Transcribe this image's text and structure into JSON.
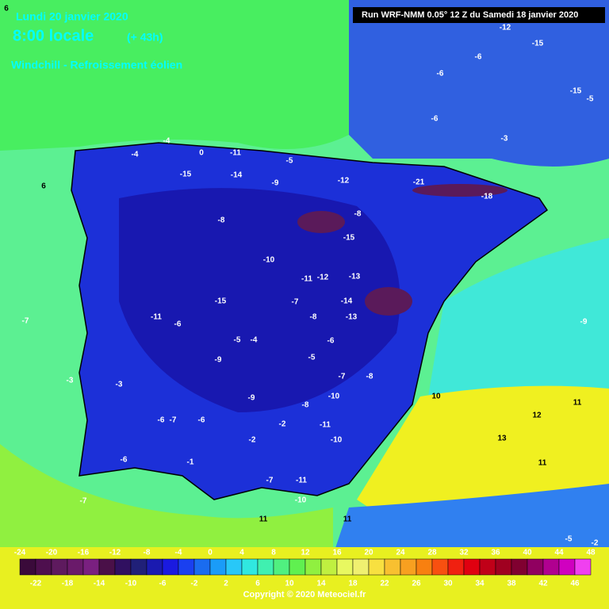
{
  "header": {
    "date": "Lundi 20 janvier 2020",
    "time": "8:00 locale",
    "lead": "(+ 43h)",
    "product": "Windchill - Refroissement éolien",
    "run": "Run WRF-NMM 0.05° 12 Z du Samedi 18 janvier 2020"
  },
  "map_labels": [
    6,
    -12,
    -15,
    -6,
    -6,
    -15,
    -5,
    -6,
    -3,
    -4,
    -4,
    0,
    -11,
    -5,
    -15,
    -14,
    -9,
    -12,
    -21,
    -18,
    -8,
    -8,
    -15,
    -10,
    -12,
    -13,
    -11,
    -15,
    -7,
    -14,
    -8,
    -13,
    -6,
    -11,
    -9,
    -5,
    -4,
    -6,
    -9,
    -5,
    -7,
    -8,
    -3,
    -9,
    -10,
    -8,
    -6,
    -7,
    -6,
    -2,
    -11,
    -2,
    -10,
    -6,
    -1,
    -7,
    -11,
    -10,
    10,
    11,
    12,
    13,
    11,
    -7,
    11,
    11,
    -5,
    -2,
    6,
    -7,
    -3
  ],
  "colorbar": {
    "top_labels": [
      -24,
      -20,
      -16,
      -12,
      -8,
      -4,
      0,
      4,
      8,
      12,
      16,
      20,
      24,
      28,
      32,
      36,
      40,
      44,
      48
    ],
    "bottom_labels": [
      -22,
      -18,
      -14,
      -10,
      -6,
      -2,
      2,
      6,
      10,
      14,
      18,
      22,
      26,
      30,
      34,
      38,
      42,
      46
    ],
    "colors": [
      "#3a0a3a",
      "#4e0f4e",
      "#5e1a5e",
      "#6a1a6a",
      "#7a2080",
      "#4a1048",
      "#301060",
      "#202078",
      "#1a1ab0",
      "#1a1ae0",
      "#1a40f0",
      "#1a6cf0",
      "#1a9cf8",
      "#28c8f8",
      "#30e8e0",
      "#40f0b0",
      "#50f080",
      "#60f050",
      "#90f040",
      "#c0f040",
      "#e8f860",
      "#f0f070",
      "#f8e040",
      "#f8c030",
      "#f8a020",
      "#f88010",
      "#f85010",
      "#f02010",
      "#e00010",
      "#c00018",
      "#a00020",
      "#800030",
      "#900060",
      "#b00090",
      "#d000c0",
      "#f040f0"
    ]
  },
  "copyright": "Copyright © 2020 Meteociel.fr"
}
